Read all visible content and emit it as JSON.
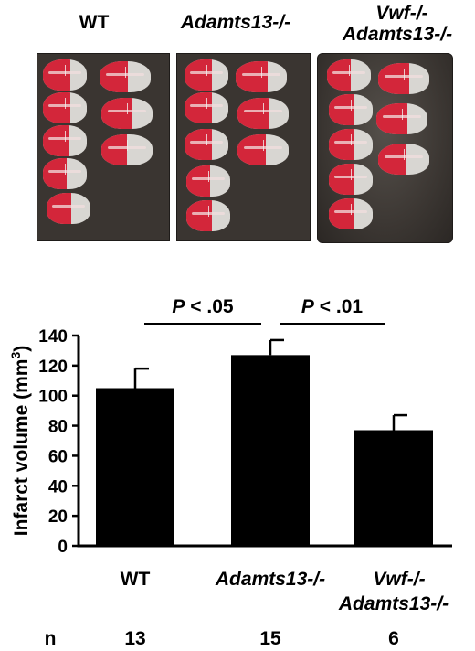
{
  "figure": {
    "panel_labels": [
      {
        "text": "WT",
        "italic": false
      },
      {
        "text": "Adamts13-/-",
        "italic": true
      },
      {
        "line1": "Vwf-/-",
        "line2": "Adamts13-/-",
        "italic": true
      }
    ],
    "slice_colors": {
      "infarct": "#d8d6d2",
      "viable": "#d3263a",
      "background": "#3a3531"
    }
  },
  "chart_data": {
    "type": "bar",
    "categories": [
      "WT",
      "Adamts13-/-",
      "Vwf-/- Adamts13-/-"
    ],
    "category_labels": [
      {
        "line1": "WT",
        "italic": false
      },
      {
        "line1": "Adamts13-/-",
        "italic": true
      },
      {
        "line1": "Vwf-/-",
        "line2": "Adamts13-/-",
        "italic": true
      }
    ],
    "values": [
      105,
      127,
      77
    ],
    "errors": [
      13,
      10,
      10
    ],
    "ylabel": "Infarct volume (mm3)",
    "ylim": [
      0,
      140
    ],
    "yticks": [
      0,
      20,
      40,
      60,
      80,
      100,
      120,
      140
    ],
    "bar_color": "#000000",
    "significance": [
      {
        "from": 0,
        "to": 1,
        "label": "P < .05"
      },
      {
        "from": 1,
        "to": 2,
        "label": "P < .01"
      }
    ],
    "n_label": "n",
    "n_values": [
      "13",
      "15",
      "6"
    ]
  }
}
